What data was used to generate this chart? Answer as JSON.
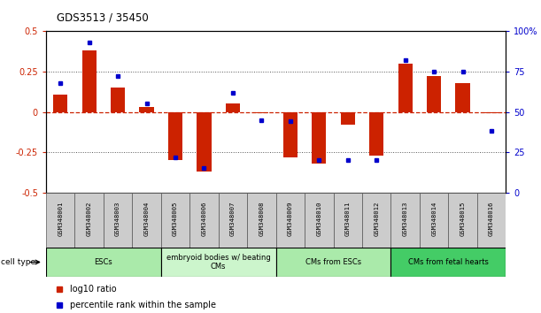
{
  "title": "GDS3513 / 35450",
  "samples": [
    "GSM348001",
    "GSM348002",
    "GSM348003",
    "GSM348004",
    "GSM348005",
    "GSM348006",
    "GSM348007",
    "GSM348008",
    "GSM348009",
    "GSM348010",
    "GSM348011",
    "GSM348012",
    "GSM348013",
    "GSM348014",
    "GSM348015",
    "GSM348016"
  ],
  "log10_ratio": [
    0.11,
    0.38,
    0.15,
    0.03,
    -0.3,
    -0.37,
    0.05,
    -0.01,
    -0.28,
    -0.32,
    -0.08,
    -0.27,
    0.3,
    0.22,
    0.18,
    -0.01
  ],
  "percentile_rank": [
    68,
    93,
    72,
    55,
    22,
    15,
    62,
    45,
    44,
    20,
    20,
    20,
    82,
    75,
    75,
    38
  ],
  "cell_type_groups": [
    {
      "label": "ESCs",
      "start": 0,
      "end": 3,
      "color": "#aaeaaa"
    },
    {
      "label": "embryoid bodies w/ beating\nCMs",
      "start": 4,
      "end": 7,
      "color": "#ccf5cc"
    },
    {
      "label": "CMs from ESCs",
      "start": 8,
      "end": 11,
      "color": "#aaeaaa"
    },
    {
      "label": "CMs from fetal hearts",
      "start": 12,
      "end": 15,
      "color": "#44cc66"
    }
  ],
  "bar_color": "#CC2200",
  "dot_color": "#0000CC",
  "hline0_color": "#CC2200",
  "hline_dotted_color": "#555555",
  "ylim_left": [
    -0.5,
    0.5
  ],
  "ylim_right": [
    0,
    100
  ],
  "yticks_left": [
    -0.5,
    -0.25,
    0.0,
    0.25,
    0.5
  ],
  "yticks_right": [
    0,
    25,
    50,
    75,
    100
  ]
}
